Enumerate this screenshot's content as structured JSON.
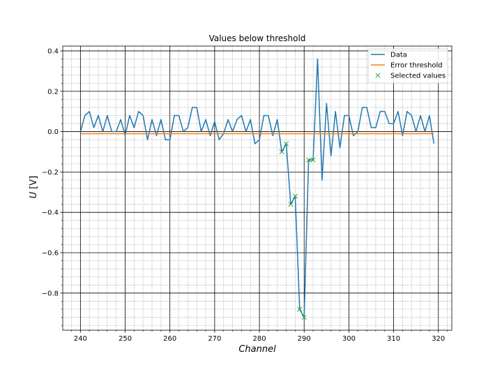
{
  "chart_data": {
    "type": "line",
    "title": "Values below threshold",
    "xlabel": "Channel",
    "ylabel_symbol": "U",
    "ylabel_unit": "[V]",
    "xlim": [
      236.05,
      323.0
    ],
    "ylim": [
      -0.984,
      0.424
    ],
    "xticks": [
      240,
      250,
      260,
      270,
      280,
      290,
      300,
      310,
      320
    ],
    "yticks": [
      -0.8,
      -0.6,
      -0.4,
      -0.2,
      0.0,
      0.2,
      0.4
    ],
    "ytick_labels": [
      "−0.8",
      "−0.6",
      "−0.4",
      "−0.2",
      "0.0",
      "0.2",
      "0.4"
    ],
    "grid": {
      "major": true,
      "minor": true
    },
    "legend": {
      "placement": "top-right"
    },
    "series": [
      {
        "name": "Data",
        "kind": "line",
        "color": "#1f77b4",
        "x": [
          240,
          241,
          242,
          243,
          244,
          245,
          246,
          247,
          248,
          249,
          250,
          251,
          252,
          253,
          254,
          255,
          256,
          257,
          258,
          259,
          260,
          261,
          262,
          263,
          264,
          265,
          266,
          267,
          268,
          269,
          270,
          271,
          272,
          273,
          274,
          275,
          276,
          277,
          278,
          279,
          280,
          281,
          282,
          283,
          284,
          285,
          286,
          287,
          288,
          289,
          290,
          291,
          292,
          293,
          294,
          295,
          296,
          297,
          298,
          299,
          300,
          301,
          302,
          303,
          304,
          305,
          306,
          307,
          308,
          309,
          310,
          311,
          312,
          313,
          314,
          315,
          316,
          317,
          318,
          319
        ],
        "y": [
          0.0,
          0.08,
          0.1,
          0.02,
          0.08,
          0.0,
          0.08,
          0.0,
          0.0,
          0.06,
          -0.02,
          0.08,
          0.02,
          0.1,
          0.08,
          -0.04,
          0.06,
          -0.02,
          0.06,
          -0.04,
          -0.04,
          0.08,
          0.08,
          0.0,
          0.02,
          0.12,
          0.12,
          0.0,
          0.06,
          -0.02,
          0.05,
          -0.04,
          -0.01,
          0.06,
          0.0,
          0.06,
          0.08,
          0.0,
          0.06,
          -0.06,
          -0.04,
          0.08,
          0.08,
          -0.02,
          0.06,
          -0.1,
          -0.06,
          -0.36,
          -0.32,
          -0.88,
          -0.92,
          -0.14,
          -0.14,
          0.36,
          -0.24,
          0.14,
          -0.12,
          0.1,
          -0.08,
          0.08,
          0.08,
          -0.02,
          0.0,
          0.12,
          0.12,
          0.02,
          0.02,
          0.1,
          0.1,
          0.04,
          0.04,
          0.1,
          -0.02,
          0.1,
          0.08,
          0.0,
          0.08,
          0.0,
          0.08,
          -0.06
        ]
      },
      {
        "name": "Error threshold",
        "kind": "line",
        "color": "#ff7f0e",
        "x": [
          240,
          319
        ],
        "y": [
          -0.01,
          -0.01
        ]
      },
      {
        "name": "Selected values",
        "kind": "marker",
        "color": "#2ca02c",
        "x": [
          285,
          286,
          287,
          288,
          289,
          290,
          291,
          292
        ],
        "y": [
          -0.1,
          -0.06,
          -0.36,
          -0.32,
          -0.88,
          -0.92,
          -0.14,
          -0.14
        ]
      }
    ]
  }
}
